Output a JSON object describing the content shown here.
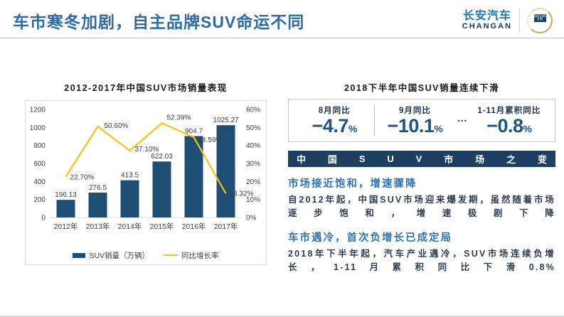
{
  "header": {
    "title": "车市寒冬加剧，自主品牌SUV命运不同",
    "logo": {
      "cn": "长安汽车",
      "en": "CHANGAN",
      "badge": "国家品牌计划",
      "badge_dots": "·····"
    }
  },
  "chart_data": {
    "type": "bar",
    "title": "2012-2017年中国SUV市场销量表现",
    "categories": [
      "2012年",
      "2013年",
      "2014年",
      "2015年",
      "2016年",
      "2017年"
    ],
    "series": [
      {
        "name": "SUV销量（万辆）",
        "type": "bar",
        "axis": "left",
        "color": "#1f4e74",
        "values": [
          196.13,
          276.5,
          413.5,
          622.03,
          904.7,
          1025.27
        ],
        "labels": [
          "196.13",
          "276.5",
          "413.5",
          "622.03",
          "904.7",
          "1025.27"
        ]
      },
      {
        "name": "同比增长率",
        "type": "line",
        "axis": "right",
        "color": "#fdc00f",
        "values": [
          22.7,
          50.6,
          37.1,
          52.39,
          44.59,
          13.32
        ],
        "labels": [
          "22.70%",
          "50.60%",
          "37.10%",
          "52.39%",
          "44.59%",
          "13.32%"
        ]
      }
    ],
    "left_axis": {
      "min": 0,
      "max": 1200,
      "step": 200,
      "suffix": ""
    },
    "right_axis": {
      "min": 0,
      "max": 60,
      "step": 10,
      "suffix": "%"
    },
    "grid": false,
    "legend_position": "bottom"
  },
  "right_panel": {
    "title": "2018下半年中国SUV销量连续下滑",
    "stats": [
      {
        "label": "8月同比",
        "value": "−4.7",
        "unit": "%"
      },
      {
        "label": "9月同比",
        "value": "−10.1",
        "unit": "%"
      },
      {
        "label": "1-11月累积同比",
        "value": "−0.8",
        "unit": "%"
      }
    ],
    "ellipsis": "…",
    "band_title": "中国SUV市场之变",
    "sections": [
      {
        "heading": "市场接近饱和，增速骤降",
        "body": "自2012年起，中国SUV市场迎来爆发期，虽然随着市场逐步饱和，增速极剧下降"
      },
      {
        "heading": "车市遇冷，首次负增长已成定局",
        "body": "2018年下半年起，汽车产业遇冷，SUV市场连续负增长，1-11月累积同比下滑0.8%"
      }
    ]
  }
}
